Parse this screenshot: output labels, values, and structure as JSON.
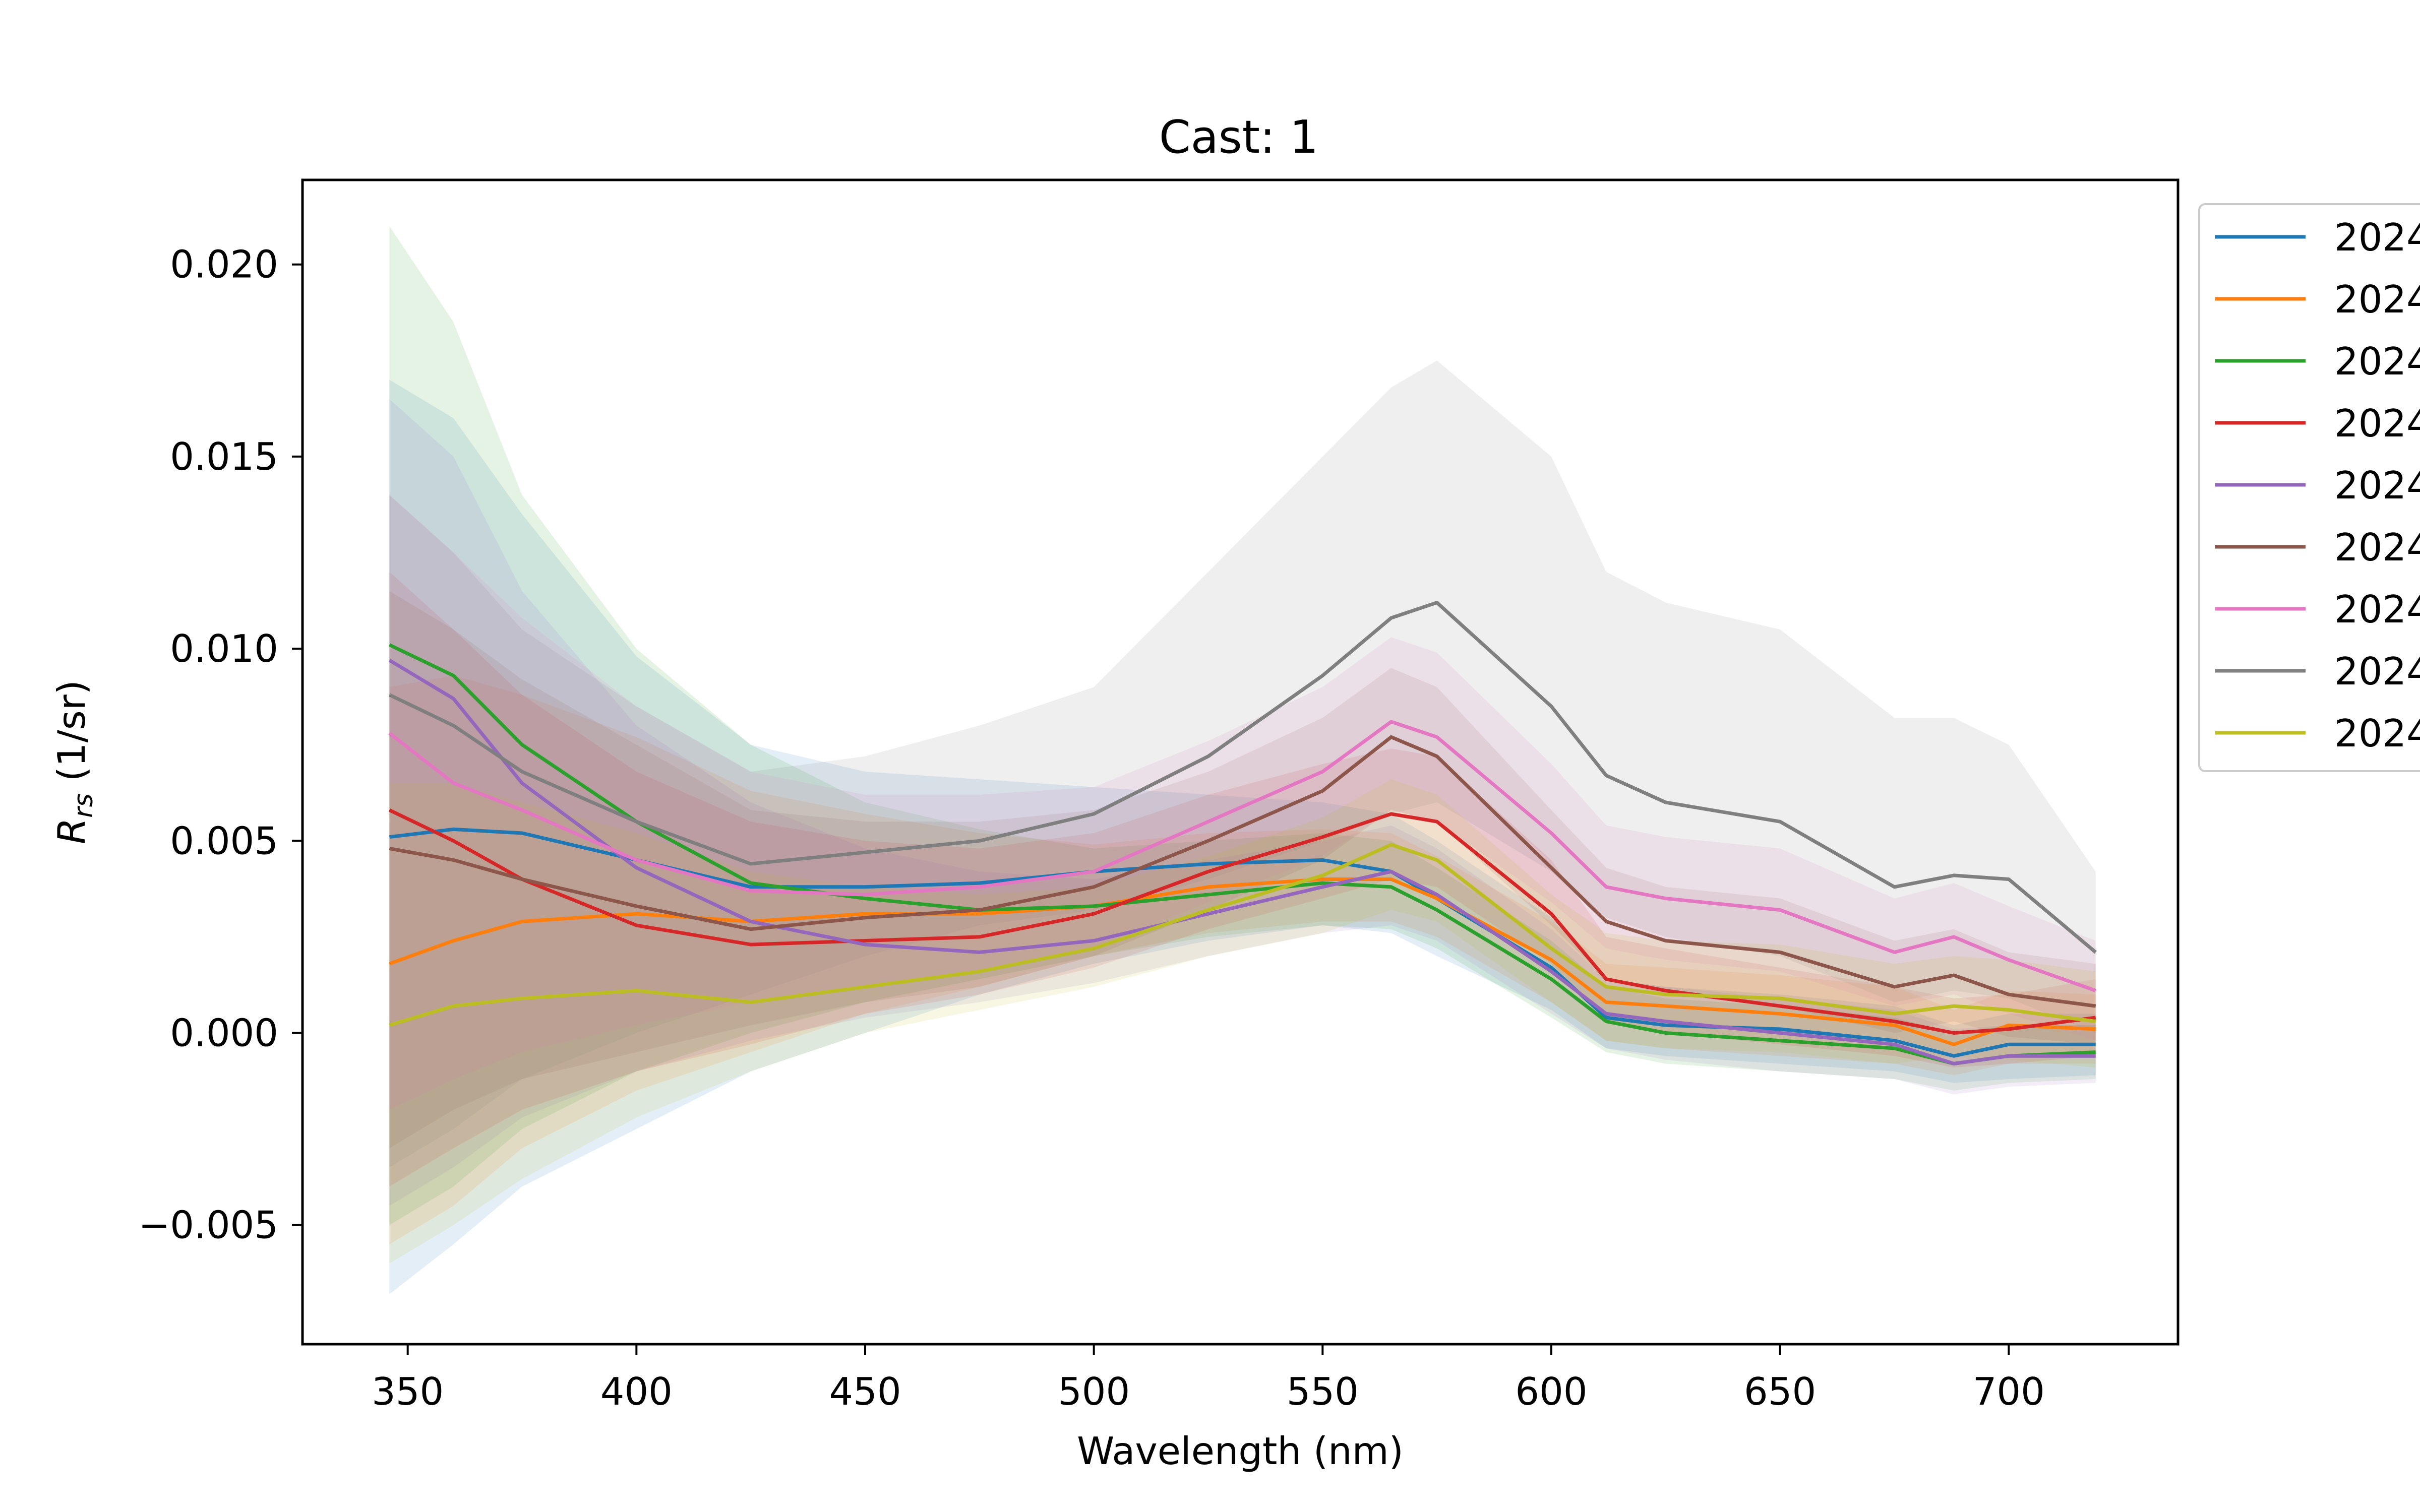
{
  "chart_data": {
    "type": "line",
    "title": "Cast: 1",
    "xlabel": "Wavelength (nm)",
    "ylabel_main": "R",
    "ylabel_sub": "rs",
    "ylabel_unit": " (1/sr)",
    "xlim": [
      327,
      737
    ],
    "ylim": [
      -0.0081,
      0.0222
    ],
    "x_ticks": [
      350,
      400,
      450,
      500,
      550,
      600,
      650,
      700
    ],
    "x_tick_labels": [
      "350",
      "400",
      "450",
      "500",
      "550",
      "600",
      "650",
      "700"
    ],
    "y_ticks": [
      -0.005,
      0.0,
      0.005,
      0.01,
      0.015,
      0.02
    ],
    "y_tick_labels": [
      "−0.005",
      "0.000",
      "0.005",
      "0.010",
      "0.015",
      "0.020"
    ],
    "legend_position": "outside-right",
    "x": [
      346,
      360,
      375,
      400,
      425,
      450,
      475,
      500,
      525,
      550,
      565,
      575,
      600,
      612,
      625,
      650,
      675,
      688,
      700,
      719
    ],
    "series": [
      {
        "name": "2024",
        "color": "#1f77b4",
        "band_opacity": 0.12,
        "values": [
          0.0051,
          0.0053,
          0.0052,
          0.0045,
          0.0038,
          0.0038,
          0.0039,
          0.0042,
          0.0044,
          0.0045,
          0.0042,
          0.0035,
          0.0017,
          0.0004,
          0.0002,
          0.0001,
          -0.0002,
          -0.0006,
          -0.0003,
          -0.0003
        ],
        "lower": [
          -0.0068,
          -0.0055,
          -0.004,
          -0.0025,
          -0.001,
          0.0,
          0.001,
          0.0018,
          0.0024,
          0.0028,
          0.0026,
          0.002,
          0.0006,
          -0.0004,
          -0.0006,
          -0.0008,
          -0.001,
          -0.0013,
          -0.0012,
          -0.0011
        ],
        "upper": [
          0.017,
          0.016,
          0.0135,
          0.0098,
          0.0075,
          0.0068,
          0.0066,
          0.0064,
          0.0062,
          0.006,
          0.0057,
          0.005,
          0.003,
          0.0014,
          0.0012,
          0.001,
          0.0007,
          0.0002,
          0.0005,
          0.0005
        ]
      },
      {
        "name": "2024",
        "color": "#ff7f0e",
        "band_opacity": 0.12,
        "values": [
          0.0018,
          0.0024,
          0.0029,
          0.0031,
          0.0029,
          0.0031,
          0.0031,
          0.0033,
          0.0038,
          0.004,
          0.004,
          0.0035,
          0.0019,
          0.0008,
          0.0007,
          0.0005,
          0.0002,
          -0.0003,
          0.0002,
          0.0001
        ],
        "lower": [
          -0.0055,
          -0.0045,
          -0.003,
          -0.0015,
          -0.0005,
          0.0005,
          0.0012,
          0.002,
          0.0026,
          0.0029,
          0.0029,
          0.0025,
          0.0008,
          -0.0002,
          -0.0004,
          -0.0006,
          -0.0008,
          -0.0011,
          -0.0008,
          -0.0008
        ],
        "upper": [
          0.009,
          0.0093,
          0.0088,
          0.0077,
          0.0063,
          0.0057,
          0.0052,
          0.0049,
          0.0052,
          0.0053,
          0.0052,
          0.0046,
          0.0029,
          0.0018,
          0.0017,
          0.0015,
          0.0012,
          0.0006,
          0.0011,
          0.001
        ]
      },
      {
        "name": "2024",
        "color": "#2ca02c",
        "band_opacity": 0.12,
        "values": [
          0.0101,
          0.0093,
          0.0075,
          0.0055,
          0.0039,
          0.0035,
          0.0032,
          0.0033,
          0.0036,
          0.0039,
          0.0038,
          0.0032,
          0.0014,
          0.0003,
          0.0,
          -0.0002,
          -0.0004,
          -0.0008,
          -0.0006,
          -0.0005
        ],
        "lower": [
          -0.005,
          -0.004,
          -0.0025,
          -0.001,
          0.0,
          0.0008,
          0.0014,
          0.002,
          0.0025,
          0.0028,
          0.0027,
          0.0022,
          0.0004,
          -0.0005,
          -0.0008,
          -0.001,
          -0.0012,
          -0.0015,
          -0.0013,
          -0.0012
        ],
        "upper": [
          0.021,
          0.0185,
          0.014,
          0.01,
          0.0075,
          0.006,
          0.0053,
          0.0048,
          0.005,
          0.0052,
          0.005,
          0.0043,
          0.0024,
          0.0012,
          0.0009,
          0.0007,
          0.0004,
          0.0,
          0.0002,
          0.0002
        ]
      },
      {
        "name": "2024",
        "color": "#d62728",
        "band_opacity": 0.12,
        "values": [
          0.0058,
          0.005,
          0.004,
          0.0028,
          0.0023,
          0.0024,
          0.0025,
          0.0031,
          0.0042,
          0.0051,
          0.0057,
          0.0055,
          0.0031,
          0.0014,
          0.0011,
          0.0007,
          0.0003,
          0.0,
          0.0001,
          0.0004
        ],
        "lower": [
          -0.004,
          -0.003,
          -0.002,
          -0.001,
          -0.0003,
          0.0005,
          0.001,
          0.0017,
          0.0027,
          0.0035,
          0.004,
          0.0038,
          0.0018,
          0.0003,
          0.0,
          -0.0003,
          -0.0006,
          -0.0009,
          -0.0008,
          -0.0006
        ],
        "upper": [
          0.012,
          0.0105,
          0.0088,
          0.0068,
          0.0055,
          0.005,
          0.0048,
          0.0052,
          0.0062,
          0.007,
          0.0074,
          0.0072,
          0.0045,
          0.0025,
          0.0022,
          0.0017,
          0.0012,
          0.0009,
          0.001,
          0.0014
        ]
      },
      {
        "name": "2024",
        "color": "#9467bd",
        "band_opacity": 0.12,
        "values": [
          0.0097,
          0.0087,
          0.0065,
          0.0043,
          0.0029,
          0.0023,
          0.0021,
          0.0024,
          0.0031,
          0.0038,
          0.0042,
          0.0036,
          0.0016,
          0.0005,
          0.0003,
          0.0,
          -0.0003,
          -0.0008,
          -0.0006,
          -0.0006
        ],
        "lower": [
          -0.0045,
          -0.0035,
          -0.0022,
          -0.001,
          -0.0002,
          0.0004,
          0.0008,
          0.0013,
          0.002,
          0.0026,
          0.0028,
          0.0024,
          0.0005,
          -0.0004,
          -0.0007,
          -0.001,
          -0.0012,
          -0.0016,
          -0.0014,
          -0.0013
        ],
        "upper": [
          0.0165,
          0.015,
          0.0115,
          0.008,
          0.006,
          0.0048,
          0.0042,
          0.004,
          0.0045,
          0.005,
          0.0054,
          0.0048,
          0.0027,
          0.0014,
          0.0012,
          0.0009,
          0.0006,
          0.0001,
          0.0002,
          0.0002
        ]
      },
      {
        "name": "2024",
        "color": "#8c564b",
        "band_opacity": 0.12,
        "values": [
          0.0048,
          0.0045,
          0.004,
          0.0033,
          0.0027,
          0.003,
          0.0032,
          0.0038,
          0.005,
          0.0063,
          0.0077,
          0.0072,
          0.0043,
          0.0029,
          0.0024,
          0.0021,
          0.0012,
          0.0015,
          0.001,
          0.0007
        ],
        "lower": [
          -0.003,
          -0.002,
          -0.0012,
          -0.0005,
          0.0002,
          0.0008,
          0.0012,
          0.002,
          0.0032,
          0.0045,
          0.0058,
          0.0055,
          0.0028,
          0.0014,
          0.001,
          0.0007,
          0.0,
          0.0003,
          -0.0001,
          -0.0003
        ],
        "upper": [
          0.0115,
          0.0105,
          0.0092,
          0.0075,
          0.0058,
          0.0055,
          0.0055,
          0.0058,
          0.0068,
          0.0082,
          0.0095,
          0.009,
          0.0058,
          0.0043,
          0.0038,
          0.0035,
          0.0024,
          0.0027,
          0.0021,
          0.0018
        ]
      },
      {
        "name": "2024",
        "color": "#e377c2",
        "band_opacity": 0.12,
        "values": [
          0.0078,
          0.0065,
          0.0058,
          0.0045,
          0.0037,
          0.0036,
          0.0038,
          0.0042,
          0.0055,
          0.0068,
          0.0081,
          0.0077,
          0.0052,
          0.0038,
          0.0035,
          0.0032,
          0.0021,
          0.0025,
          0.0019,
          0.0011
        ],
        "lower": [
          -0.002,
          -0.0012,
          -0.0005,
          0.0002,
          0.0008,
          0.0012,
          0.0016,
          0.0022,
          0.0034,
          0.0046,
          0.0058,
          0.0055,
          0.0034,
          0.0022,
          0.0019,
          0.0016,
          0.0007,
          0.001,
          0.0005,
          -0.0002
        ],
        "upper": [
          0.014,
          0.0125,
          0.0108,
          0.0085,
          0.0068,
          0.0062,
          0.0062,
          0.0064,
          0.0076,
          0.009,
          0.0103,
          0.0099,
          0.007,
          0.0054,
          0.0051,
          0.0048,
          0.0035,
          0.0039,
          0.0033,
          0.0024
        ]
      },
      {
        "name": "2024",
        "color": "#7f7f7f",
        "band_opacity": 0.12,
        "values": [
          0.0088,
          0.008,
          0.0068,
          0.0055,
          0.0044,
          0.0047,
          0.005,
          0.0057,
          0.0072,
          0.0093,
          0.0108,
          0.0112,
          0.0085,
          0.0067,
          0.006,
          0.0055,
          0.0038,
          0.0041,
          0.004,
          0.0021
        ],
        "lower": [
          -0.0035,
          -0.0025,
          -0.0012,
          0.0,
          0.001,
          0.002,
          0.0028,
          0.0032,
          0.004,
          0.005,
          0.0057,
          0.006,
          0.0042,
          0.003,
          0.0025,
          0.002,
          0.0008,
          0.0011,
          0.0009,
          0.0
        ],
        "upper": [
          0.014,
          0.0125,
          0.0105,
          0.0085,
          0.0068,
          0.0072,
          0.008,
          0.009,
          0.012,
          0.015,
          0.0168,
          0.0175,
          0.015,
          0.012,
          0.0112,
          0.0105,
          0.0082,
          0.0082,
          0.0075,
          0.0042
        ]
      },
      {
        "name": "2024",
        "color": "#bcbd22",
        "band_opacity": 0.12,
        "values": [
          0.0002,
          0.0007,
          0.0009,
          0.0011,
          0.0008,
          0.0012,
          0.0016,
          0.0022,
          0.0032,
          0.0041,
          0.0049,
          0.0045,
          0.0022,
          0.0012,
          0.001,
          0.0009,
          0.0005,
          0.0007,
          0.0006,
          0.0003
        ],
        "lower": [
          -0.006,
          -0.005,
          -0.0038,
          -0.0022,
          -0.001,
          0.0,
          0.0006,
          0.0012,
          0.002,
          0.0026,
          0.0032,
          0.0029,
          0.0008,
          -0.0002,
          -0.0004,
          -0.0005,
          -0.0008,
          -0.0006,
          -0.0007,
          -0.0009
        ],
        "upper": [
          0.0065,
          0.0065,
          0.006,
          0.0052,
          0.0042,
          0.0038,
          0.0036,
          0.0038,
          0.0046,
          0.0056,
          0.0066,
          0.0062,
          0.0036,
          0.0026,
          0.0024,
          0.0023,
          0.0018,
          0.002,
          0.0019,
          0.0016
        ]
      }
    ]
  }
}
